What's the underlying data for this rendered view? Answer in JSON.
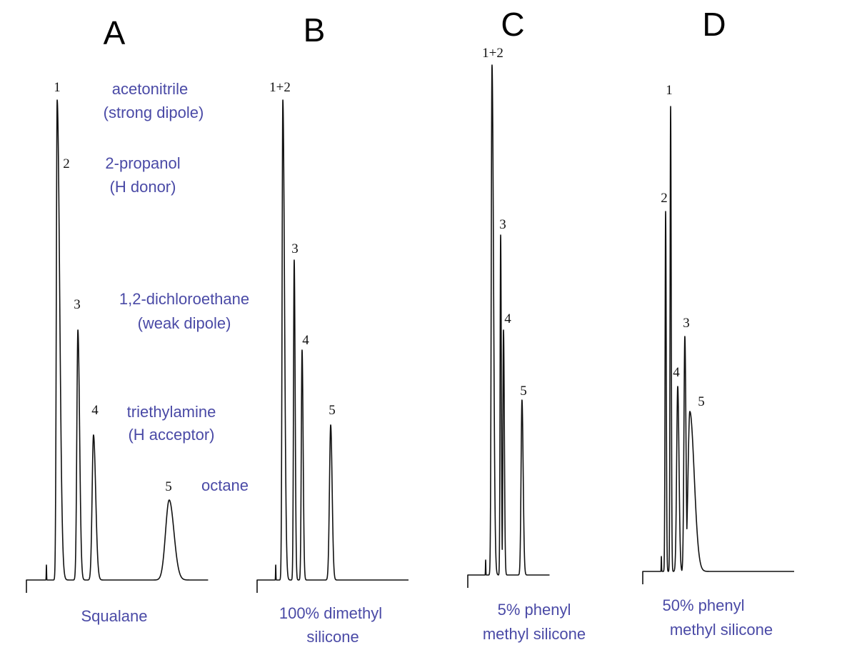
{
  "chart_data": [
    {
      "type": "line",
      "panel": "A",
      "stationary_phase": "Squalane",
      "xlim": [
        0,
        120
      ],
      "injection_spike_rt": 13.2,
      "peaks": [
        {
          "label": "1",
          "rt": 20.3,
          "height": 96,
          "sigma": 0.55,
          "tail": 3.0
        },
        {
          "label": "2",
          "rt": 20.3,
          "height": 0,
          "sigma": 0.5,
          "tail": 1
        },
        {
          "label": "3",
          "rt": 34.0,
          "height": 50,
          "sigma": 0.7,
          "tail": 1.6
        },
        {
          "label": "4",
          "rt": 44.3,
          "height": 29,
          "sigma": 0.9,
          "tail": 1.6
        },
        {
          "label": "5",
          "rt": 94.3,
          "height": 16,
          "sigma": 2.4,
          "tail": 1.3
        }
      ],
      "peak_labels": [
        "1",
        "2",
        "3",
        "4",
        "5"
      ]
    },
    {
      "type": "line",
      "panel": "B",
      "stationary_phase": "100% dimethyl silicone",
      "xlim": [
        0,
        100
      ],
      "injection_spike_rt": 12.3,
      "peaks": [
        {
          "label": "1+2",
          "rt": 17.0,
          "height": 96,
          "sigma": 0.5,
          "tail": 2.2
        },
        {
          "label": "3",
          "rt": 24.5,
          "height": 64,
          "sigma": 0.45,
          "tail": 1.4
        },
        {
          "label": "4",
          "rt": 29.7,
          "height": 46,
          "sigma": 0.5,
          "tail": 1.4
        },
        {
          "label": "5",
          "rt": 48.6,
          "height": 31,
          "sigma": 0.8,
          "tail": 1.2
        }
      ],
      "peak_labels": [
        "1+2",
        "3",
        "4",
        "5"
      ]
    },
    {
      "type": "line",
      "panel": "C",
      "stationary_phase": "5% phenyl methyl silicone",
      "xlim": [
        0,
        54
      ],
      "injection_spike_rt": 11.8,
      "peaks": [
        {
          "label": "1+2",
          "rt": 16.0,
          "height": 102,
          "sigma": 0.5,
          "tail": 2.0
        },
        {
          "label": "3",
          "rt": 21.7,
          "height": 68,
          "sigma": 0.35,
          "tail": 1.3
        },
        {
          "label": "4",
          "rt": 23.6,
          "height": 49,
          "sigma": 0.4,
          "tail": 1.4
        },
        {
          "label": "5",
          "rt": 35.8,
          "height": 35,
          "sigma": 0.6,
          "tail": 1.3
        }
      ],
      "peak_labels": [
        "1+2",
        "3",
        "4",
        "5"
      ]
    },
    {
      "type": "line",
      "panel": "D",
      "stationary_phase": "50% phenyl methyl silicone",
      "xlim": [
        0,
        100
      ],
      "injection_spike_rt": 12.3,
      "peaks": [
        {
          "label": "2",
          "rt": 15.1,
          "height": 72,
          "sigma": 0.35,
          "tail": 1.2
        },
        {
          "label": "1",
          "rt": 18.4,
          "height": 93,
          "sigma": 0.35,
          "tail": 1.2
        },
        {
          "label": "4",
          "rt": 23.1,
          "height": 37,
          "sigma": 0.7,
          "tail": 1.2
        },
        {
          "label": "3",
          "rt": 27.8,
          "height": 47,
          "sigma": 0.6,
          "tail": 1.2
        },
        {
          "label": "5",
          "rt": 31.1,
          "height": 32,
          "sigma": 1.2,
          "tail": 2.4
        }
      ],
      "peak_labels": [
        "1",
        "2",
        "3",
        "4",
        "5"
      ]
    }
  ],
  "panels": {
    "A": {
      "letter": "A",
      "labels": [
        "1",
        "2",
        "3",
        "4",
        "5"
      ],
      "phase": "Squalane"
    },
    "B": {
      "letter": "B",
      "labels": [
        "1+2",
        "3",
        "4",
        "5"
      ],
      "phase_line1": "100% dimethyl",
      "phase_line2": "silicone"
    },
    "C": {
      "letter": "C",
      "labels": [
        "1+2",
        "3",
        "4",
        "5"
      ],
      "phase_line1": "5% phenyl",
      "phase_line2": "methyl silicone"
    },
    "D": {
      "letter": "D",
      "labels": [
        "1",
        "2",
        "3",
        "4",
        "5"
      ],
      "phase_line1": "50% phenyl",
      "phase_line2": "methyl silicone"
    }
  },
  "annotations": {
    "c1_name": "acetonitrile",
    "c1_type": "(strong dipole)",
    "c2_name": "2-propanol",
    "c2_type": "(H donor)",
    "c3_name": "1,2-dichloroethane",
    "c3_type": "(weak dipole)",
    "c4_name": "triethylamine",
    "c4_type": "(H acceptor)",
    "c5_name": "octane"
  },
  "colors": {
    "trace": "#111111",
    "annotation": "#4a4aa6"
  }
}
